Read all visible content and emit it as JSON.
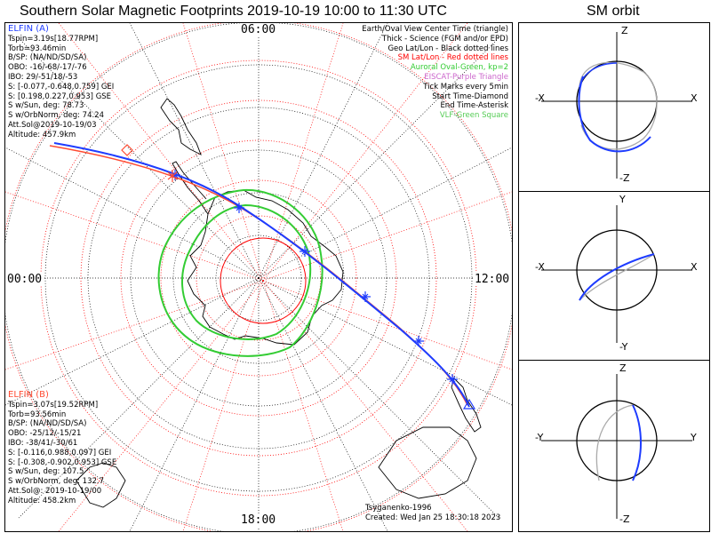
{
  "header": {
    "main_title": "Southern Solar Magnetic Footprints 2019-10-19 10:00 to 11:30 UTC",
    "orbit_title": "SM orbit"
  },
  "map": {
    "time_labels": {
      "top": "06:00",
      "left": "00:00",
      "right": "12:00",
      "bottom": "18:00"
    }
  },
  "elfin_a": {
    "name": "ELFIN (A)",
    "lines": [
      "Tspin=3.19s[18.77RPM]",
      "Torb=93.46min",
      "B/SP: (NA/ND/SD/SA)",
      "OBO: -16/-68/-17/-76",
      "IBO: 29/-51/18/-53",
      "S: [-0.077,-0.648,0.759] GEI",
      "S: [0.198,0.227,0.953] GSE",
      "S w/Sun, deg: 78.73",
      "S w/OrbNorm, deg: 74.24",
      "Att.Sol@2019-10-19/03",
      "Altitude: 457.9km"
    ],
    "color": "#1e3cff"
  },
  "elfin_b": {
    "name": "ELFIN (B)",
    "lines": [
      "Tspin=3.07s[19.52RPM]",
      "Torb=93.56min",
      "B/SP: (NA/ND/SD/SA)",
      "OBO: -25/12/-15/21",
      "IBO: -38/41/-30/61",
      "S: [-0.116,0.988,0.097] GEI",
      "S: [-0.308,-0.902,0.953] GSE",
      "S w/Sun, deg: 107.5",
      "S w/OrbNorm, deg: 132.7",
      "Att.Sol@: 2019-10-19/00",
      "Altitude: 458.2km"
    ],
    "color": "#ff4b32"
  },
  "legend": {
    "items": [
      {
        "text": "Earth/Oval View Center Time (triangle)",
        "color": "#000000"
      },
      {
        "text": "Thick - Science (FGM and/or EPD)",
        "color": "#000000"
      },
      {
        "text": "Geo Lat/Lon - Black dotted lines",
        "color": "#000000"
      },
      {
        "text": "SM Lat/Lon - Red dotted lines",
        "color": "#ff0000"
      },
      {
        "text": "Auroral Oval-Green, kp=2",
        "color": "#33cc33"
      },
      {
        "text": "EISCAT-Purple Triangle",
        "color": "#cc66cc"
      },
      {
        "text": "Tick Marks every 5min",
        "color": "#000000"
      },
      {
        "text": "Start Time-Diamond",
        "color": "#000000"
      },
      {
        "text": "End Time-Asterisk",
        "color": "#000000"
      },
      {
        "text": "VLF-Green Square",
        "color": "#55cc55"
      }
    ]
  },
  "credits": {
    "model": "Tsyganenko-1996",
    "created": "Created: Wed Jan 25 18:30:18 2023"
  },
  "orbit_panels": [
    {
      "top": "Z",
      "bottom": "-Z",
      "left": "-X",
      "right": "X"
    },
    {
      "top": "Y",
      "bottom": "-Y",
      "left": "-X",
      "right": "X"
    },
    {
      "top": "Z",
      "bottom": "-Z",
      "left": "-Y",
      "right": "Y"
    }
  ]
}
